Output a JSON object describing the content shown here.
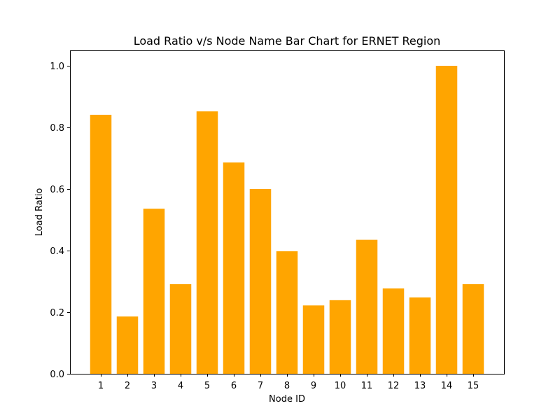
{
  "chart_data": {
    "type": "bar",
    "title": "Load Ratio v/s Node Name Bar Chart for ERNET Region",
    "xlabel": "Node ID",
    "ylabel": "Load Ratio",
    "categories": [
      "1",
      "2",
      "3",
      "4",
      "5",
      "6",
      "7",
      "8",
      "9",
      "10",
      "11",
      "12",
      "13",
      "14",
      "15"
    ],
    "values": [
      0.841,
      0.186,
      0.536,
      0.291,
      0.852,
      0.686,
      0.6,
      0.398,
      0.222,
      0.239,
      0.435,
      0.277,
      0.248,
      1.0,
      0.291
    ],
    "ylim": [
      0,
      1.05
    ],
    "yticks": [
      "0.0",
      "0.2",
      "0.4",
      "0.6",
      "0.8",
      "1.0"
    ],
    "bar_color": "#ffa500",
    "grid": false,
    "legend": "none"
  }
}
